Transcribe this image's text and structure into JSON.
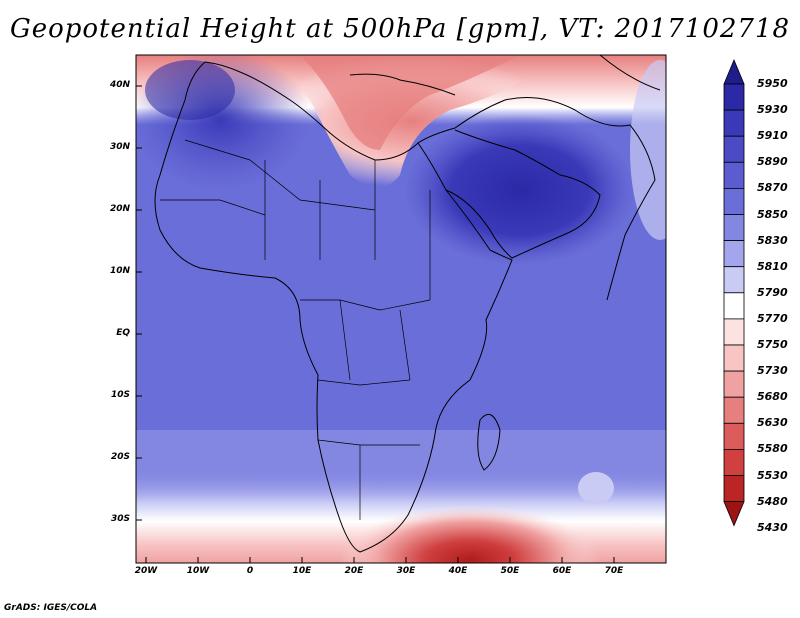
{
  "title": "Geopotential Height at 500hPa [gpm], VT: 2017102718",
  "credit": "GrADS: IGES/COLA",
  "map": {
    "lat_labels": [
      "40N",
      "30N",
      "20N",
      "10N",
      "EQ",
      "10S",
      "20S",
      "30S"
    ],
    "lon_labels": [
      "20W",
      "10W",
      "0",
      "10E",
      "20E",
      "30E",
      "40E",
      "50E",
      "60E",
      "70E"
    ]
  },
  "colorbar": {
    "levels": [
      "5950",
      "5930",
      "5910",
      "5890",
      "5870",
      "5850",
      "5830",
      "5810",
      "5790",
      "5770",
      "5750",
      "5730",
      "5680",
      "5630",
      "5580",
      "5530",
      "5480",
      "5430"
    ],
    "colors": [
      "#1f1d8c",
      "#2b29a6",
      "#3a39b8",
      "#4b4bc5",
      "#5a5ccf",
      "#6a6ed8",
      "#8487e2",
      "#a3a6ec",
      "#c9cbf5",
      "#ffffff",
      "#fde2e2",
      "#f8c4c4",
      "#f0a2a2",
      "#e77f7f",
      "#dc5b5b",
      "#d04040",
      "#bb2525",
      "#9e1414"
    ]
  }
}
